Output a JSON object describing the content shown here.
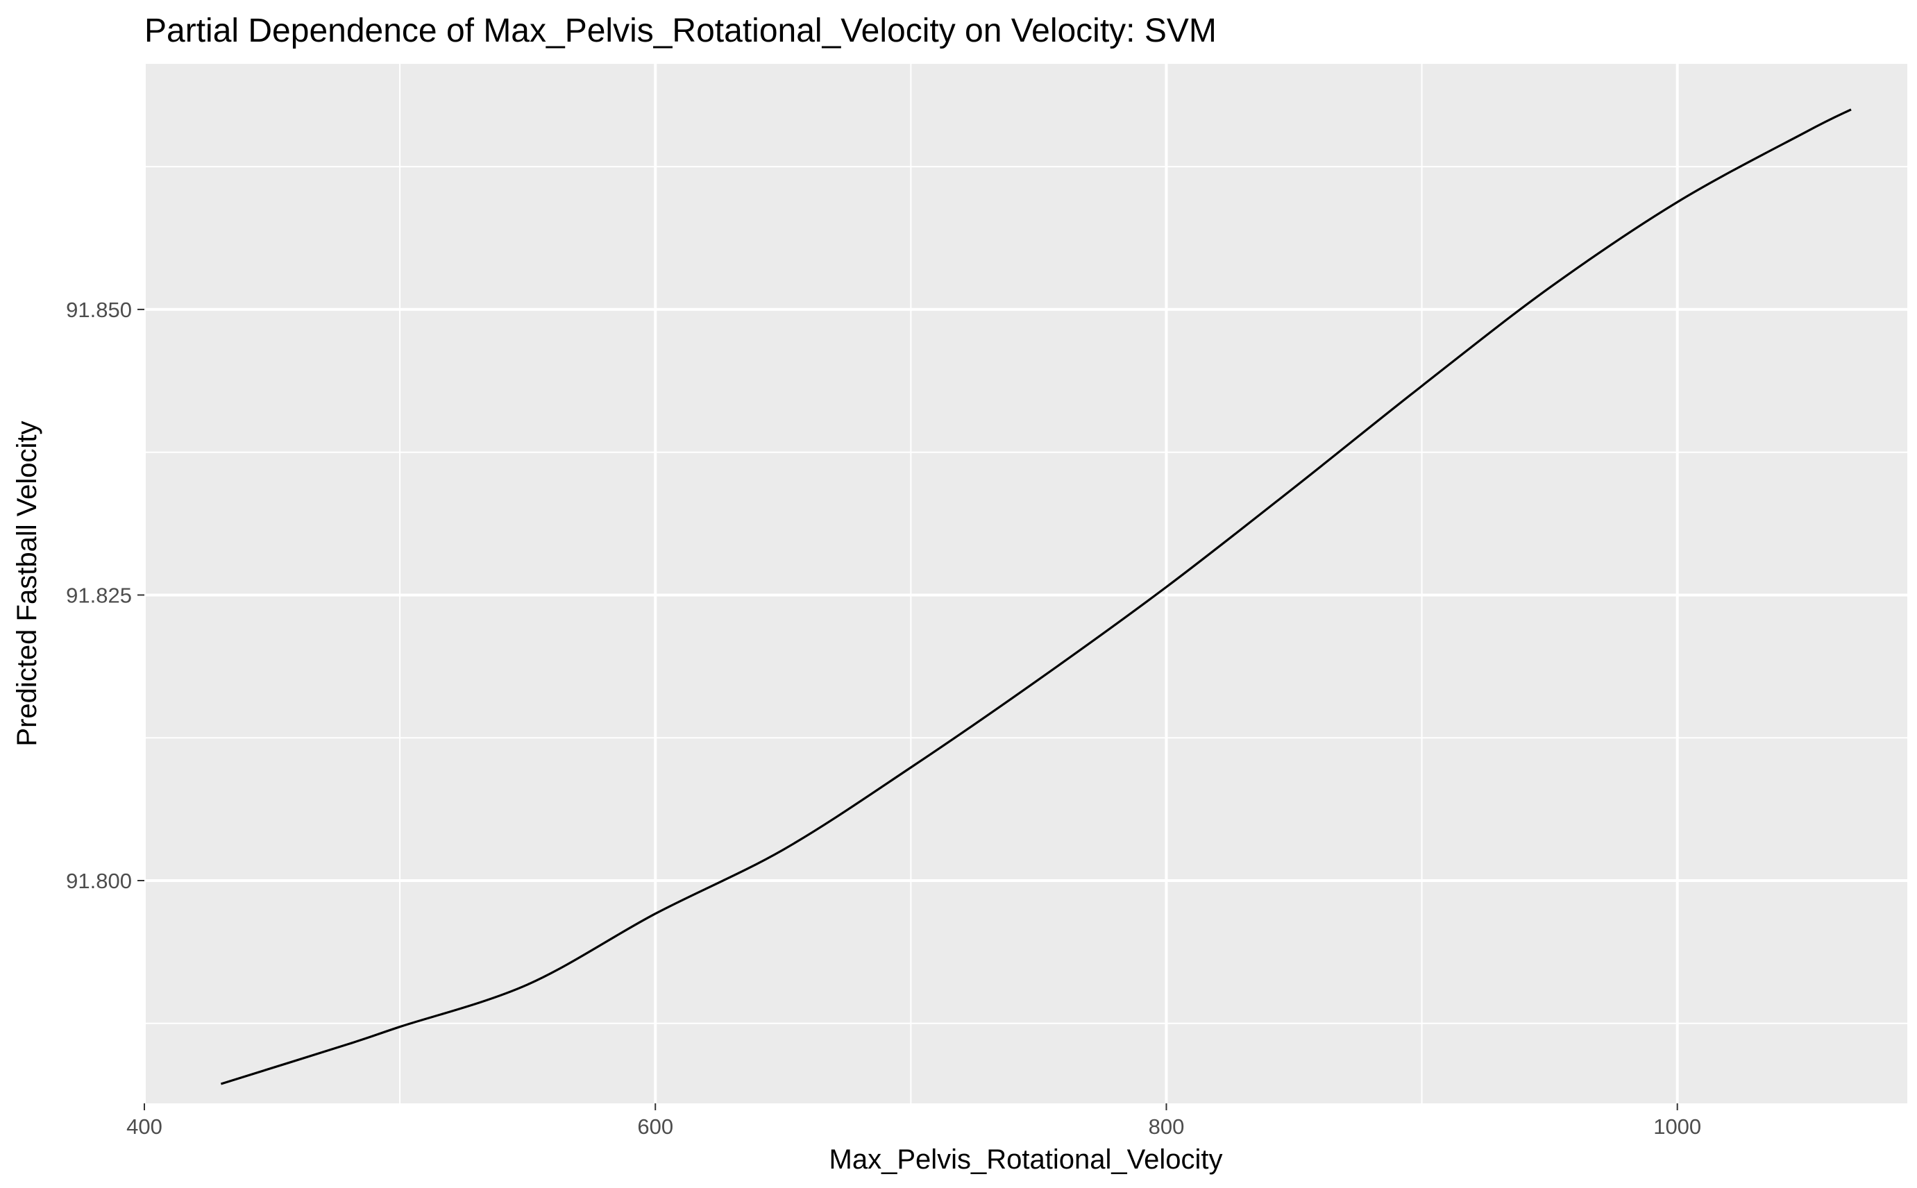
{
  "chart_data": {
    "type": "line",
    "title": "Partial Dependence of Max_Pelvis_Rotational_Velocity on Velocity: SVM",
    "xlabel": "Max_Pelvis_Rotational_Velocity",
    "ylabel": "Predicted Fastball Velocity",
    "xlim": [
      400,
      1090
    ],
    "ylim": [
      91.7805,
      91.8715
    ],
    "x_ticks": [
      400,
      600,
      800,
      1000
    ],
    "x_tick_labels": [
      "400",
      "600",
      "800",
      "1000"
    ],
    "x_minor_ticks": [
      500,
      700,
      900
    ],
    "y_ticks": [
      91.8,
      91.825,
      91.85
    ],
    "y_tick_labels": [
      "91.800",
      "91.825",
      "91.850"
    ],
    "y_minor_ticks": [
      91.7875,
      91.8125,
      91.8375,
      91.8625
    ],
    "grid": true,
    "legend": "none",
    "colors": {
      "panel_background": "#ebebeb",
      "gridline": "#ffffff",
      "line": "#000000",
      "tick_label": "#4d4d4d",
      "tick_mark": "#333333"
    },
    "series": [
      {
        "x": [
          430,
          480,
          500,
          550,
          600,
          650,
          700,
          750,
          800,
          850,
          900,
          950,
          1000,
          1050,
          1068
        ],
        "values": [
          91.7822,
          91.7857,
          91.7872,
          91.7909,
          91.7971,
          91.8027,
          91.8099,
          91.8176,
          91.8257,
          91.8344,
          91.8433,
          91.8519,
          91.8594,
          91.8655,
          91.8675
        ]
      }
    ]
  }
}
